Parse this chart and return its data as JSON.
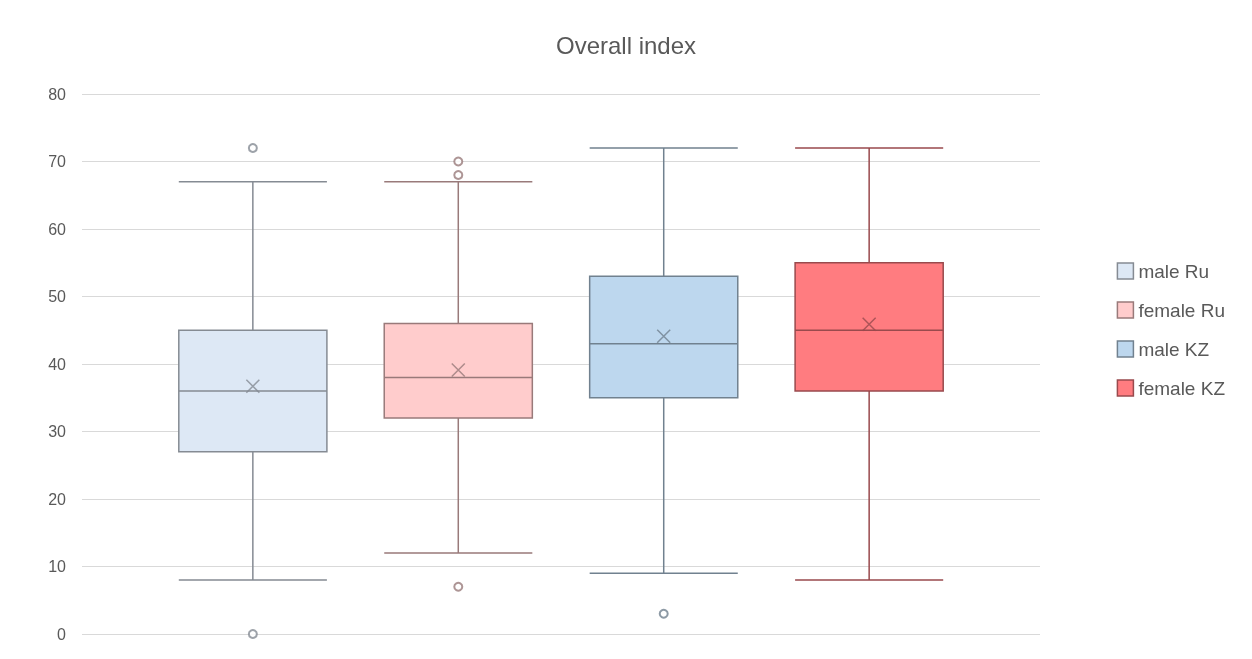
{
  "chart_data": {
    "type": "box",
    "title": "Overall index",
    "categories": [
      null
    ],
    "series": [
      {
        "name": "male Ru",
        "color": "#dde8f5",
        "boxes": [
          {
            "low": 8,
            "q1": 27,
            "median": 36,
            "q3": 45,
            "high": 67,
            "mean": 36.7,
            "outliers": [
              72,
              0
            ]
          }
        ]
      },
      {
        "name": "female Ru",
        "color": "#ffcccc",
        "boxes": [
          {
            "low": 12,
            "q1": 32,
            "median": 38,
            "q3": 46,
            "high": 67,
            "mean": 39.1,
            "outliers": [
              70,
              68,
              7
            ]
          }
        ]
      },
      {
        "name": "male KZ",
        "color": "#bdd7ee",
        "boxes": [
          {
            "low": 9,
            "q1": 35,
            "median": 43,
            "q3": 53,
            "high": 72,
            "mean": 44.1,
            "outliers": [
              3
            ]
          }
        ]
      },
      {
        "name": "female KZ",
        "color": "#ff7c80",
        "boxes": [
          {
            "low": 8,
            "q1": 36,
            "median": 45,
            "q3": 55,
            "high": 72,
            "mean": 45.9
          }
        ]
      }
    ],
    "ylim": [
      0,
      80
    ],
    "yticks": [
      0,
      10,
      20,
      30,
      40,
      50,
      60,
      70,
      80
    ],
    "grid": "y",
    "legend": "right"
  }
}
